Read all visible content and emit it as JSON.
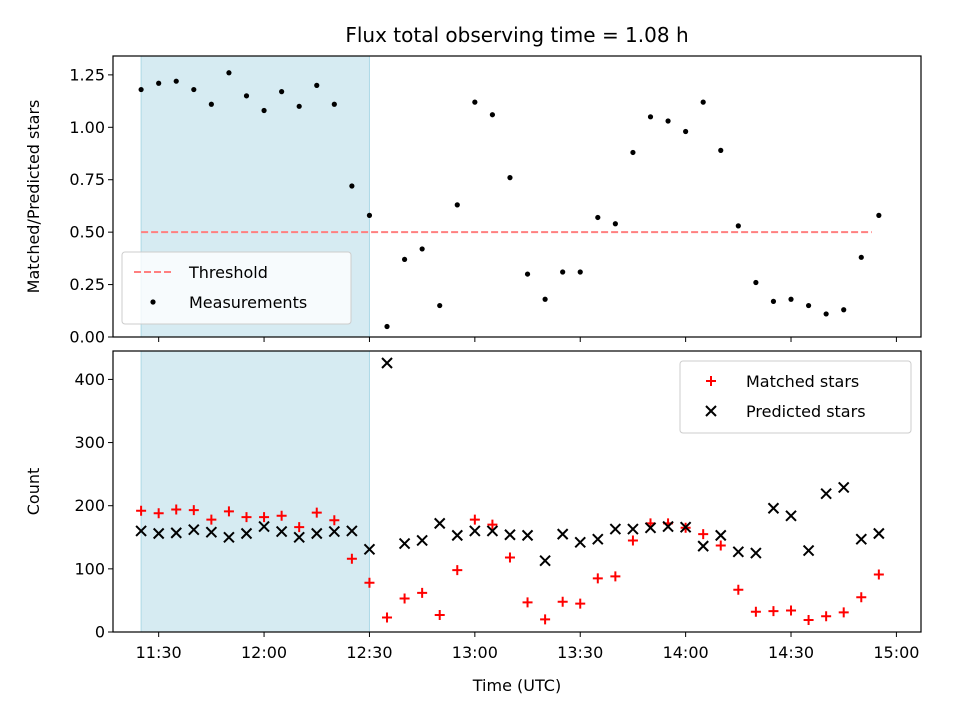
{
  "figure": {
    "title": "Flux total observing time = 1.08 h",
    "xlabel": "Time (UTC)"
  },
  "chart_data": [
    {
      "type": "scatter",
      "panel": "top",
      "ylabel": "Matched/Predicted stars",
      "xlim": [
        "11:17",
        "15:07"
      ],
      "ylim": [
        0,
        1.34
      ],
      "yticks": [
        "0.00",
        "0.25",
        "0.50",
        "0.75",
        "1.00",
        "1.25"
      ],
      "grid": false,
      "legend_position": "lower-left",
      "highlight_span": {
        "start": "11:25",
        "end": "12:30",
        "color": "#add8e6"
      },
      "threshold": {
        "name": "Threshold",
        "value": 0.5,
        "x_start": "11:25",
        "x_end": "14:53",
        "color": "#ff7f7f",
        "style": "dashed"
      },
      "series": [
        {
          "name": "Measurements",
          "color": "#000000",
          "marker": "dot",
          "points": [
            [
              "11:25",
              1.18
            ],
            [
              "11:30",
              1.21
            ],
            [
              "11:35",
              1.22
            ],
            [
              "11:40",
              1.18
            ],
            [
              "11:45",
              1.11
            ],
            [
              "11:50",
              1.26
            ],
            [
              "11:55",
              1.15
            ],
            [
              "12:00",
              1.08
            ],
            [
              "12:05",
              1.17
            ],
            [
              "12:10",
              1.1
            ],
            [
              "12:15",
              1.2
            ],
            [
              "12:20",
              1.11
            ],
            [
              "12:25",
              0.72
            ],
            [
              "12:30",
              0.58
            ],
            [
              "12:35",
              0.05
            ],
            [
              "12:40",
              0.37
            ],
            [
              "12:45",
              0.42
            ],
            [
              "12:50",
              0.15
            ],
            [
              "12:55",
              0.63
            ],
            [
              "13:00",
              1.12
            ],
            [
              "13:05",
              1.06
            ],
            [
              "13:10",
              0.76
            ],
            [
              "13:15",
              0.3
            ],
            [
              "13:20",
              0.18
            ],
            [
              "13:25",
              0.31
            ],
            [
              "13:30",
              0.31
            ],
            [
              "13:35",
              0.57
            ],
            [
              "13:40",
              0.54
            ],
            [
              "13:45",
              0.88
            ],
            [
              "13:50",
              1.05
            ],
            [
              "13:55",
              1.03
            ],
            [
              "14:00",
              0.98
            ],
            [
              "14:05",
              1.12
            ],
            [
              "14:10",
              0.89
            ],
            [
              "14:15",
              0.53
            ],
            [
              "14:20",
              0.26
            ],
            [
              "14:25",
              0.17
            ],
            [
              "14:30",
              0.18
            ],
            [
              "14:35",
              0.15
            ],
            [
              "14:40",
              0.11
            ],
            [
              "14:45",
              0.13
            ],
            [
              "14:50",
              0.38
            ],
            [
              "14:55",
              0.58
            ]
          ]
        }
      ]
    },
    {
      "type": "scatter",
      "panel": "bottom",
      "ylabel": "Count",
      "xlim": [
        "11:17",
        "15:07"
      ],
      "ylim": [
        0,
        445
      ],
      "yticks": [
        "0",
        "100",
        "200",
        "300",
        "400"
      ],
      "xticks": [
        "11:30",
        "12:00",
        "12:30",
        "13:00",
        "13:30",
        "14:00",
        "14:30",
        "15:00"
      ],
      "grid": false,
      "legend_position": "top-right",
      "highlight_span": {
        "start": "11:25",
        "end": "12:30",
        "color": "#add8e6"
      },
      "series": [
        {
          "name": "Matched stars",
          "color": "#ff0000",
          "marker": "plus",
          "points": [
            [
              "11:25",
              192
            ],
            [
              "11:30",
              188
            ],
            [
              "11:35",
              194
            ],
            [
              "11:40",
              193
            ],
            [
              "11:45",
              178
            ],
            [
              "11:50",
              191
            ],
            [
              "11:55",
              182
            ],
            [
              "12:00",
              182
            ],
            [
              "12:05",
              184
            ],
            [
              "12:10",
              166
            ],
            [
              "12:15",
              189
            ],
            [
              "12:20",
              177
            ],
            [
              "12:25",
              116
            ],
            [
              "12:30",
              78
            ],
            [
              "12:35",
              23
            ],
            [
              "12:40",
              53
            ],
            [
              "12:45",
              62
            ],
            [
              "12:50",
              27
            ],
            [
              "12:55",
              98
            ],
            [
              "13:00",
              178
            ],
            [
              "13:05",
              170
            ],
            [
              "13:10",
              118
            ],
            [
              "13:15",
              47
            ],
            [
              "13:20",
              20
            ],
            [
              "13:25",
              48
            ],
            [
              "13:30",
              45
            ],
            [
              "13:35",
              85
            ],
            [
              "13:40",
              88
            ],
            [
              "13:45",
              145
            ],
            [
              "13:50",
              172
            ],
            [
              "13:55",
              172
            ],
            [
              "14:00",
              165
            ],
            [
              "14:05",
              155
            ],
            [
              "14:10",
              137
            ],
            [
              "14:15",
              67
            ],
            [
              "14:20",
              32
            ],
            [
              "14:25",
              33
            ],
            [
              "14:30",
              34
            ],
            [
              "14:35",
              19
            ],
            [
              "14:40",
              25
            ],
            [
              "14:45",
              31
            ],
            [
              "14:50",
              55
            ],
            [
              "14:55",
              91
            ]
          ]
        },
        {
          "name": "Predicted stars",
          "color": "#000000",
          "marker": "x",
          "points": [
            [
              "11:25",
              160
            ],
            [
              "11:30",
              156
            ],
            [
              "11:35",
              157
            ],
            [
              "11:40",
              162
            ],
            [
              "11:45",
              158
            ],
            [
              "11:50",
              150
            ],
            [
              "11:55",
              156
            ],
            [
              "12:00",
              167
            ],
            [
              "12:05",
              159
            ],
            [
              "12:10",
              150
            ],
            [
              "12:15",
              156
            ],
            [
              "12:20",
              159
            ],
            [
              "12:25",
              160
            ],
            [
              "12:30",
              131
            ],
            [
              "12:35",
              426
            ],
            [
              "12:40",
              140
            ],
            [
              "12:45",
              145
            ],
            [
              "12:50",
              172
            ],
            [
              "12:55",
              153
            ],
            [
              "13:00",
              160
            ],
            [
              "13:05",
              160
            ],
            [
              "13:10",
              154
            ],
            [
              "13:15",
              153
            ],
            [
              "13:20",
              113
            ],
            [
              "13:25",
              155
            ],
            [
              "13:30",
              142
            ],
            [
              "13:35",
              147
            ],
            [
              "13:40",
              163
            ],
            [
              "13:45",
              163
            ],
            [
              "13:50",
              165
            ],
            [
              "13:55",
              167
            ],
            [
              "14:00",
              166
            ],
            [
              "14:05",
              136
            ],
            [
              "14:10",
              153
            ],
            [
              "14:15",
              127
            ],
            [
              "14:20",
              125
            ],
            [
              "14:25",
              196
            ],
            [
              "14:30",
              184
            ],
            [
              "14:35",
              129
            ],
            [
              "14:40",
              219
            ],
            [
              "14:45",
              229
            ],
            [
              "14:50",
              147
            ],
            [
              "14:55",
              156
            ]
          ]
        }
      ]
    }
  ]
}
